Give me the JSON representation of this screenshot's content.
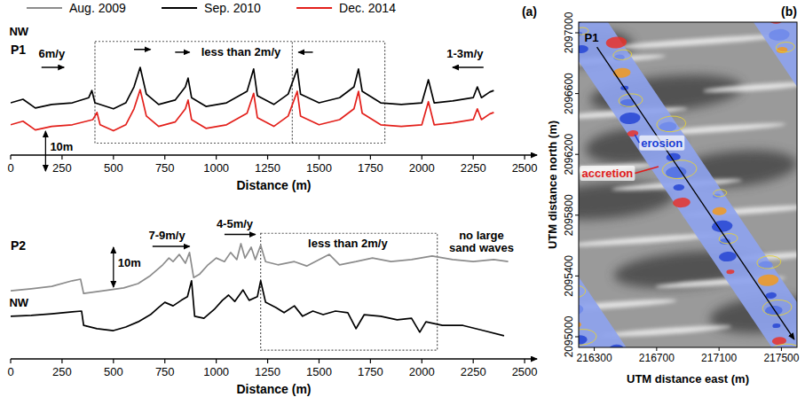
{
  "chart_data": [
    {
      "type": "line",
      "title": "P1",
      "panel_label": "(a)",
      "xlabel": "Distance (m)",
      "xlim": [
        0,
        2560
      ],
      "xticks": [
        0,
        250,
        500,
        750,
        1000,
        1250,
        1500,
        1750,
        2000,
        2250,
        2500
      ],
      "ylim": [
        0,
        32
      ],
      "tick_labels": "x",
      "legend": "top",
      "series": [
        {
          "name": "Sep. 2010",
          "color": "#000000",
          "x": [
            0,
            60,
            120,
            200,
            300,
            380,
            395,
            410,
            500,
            560,
            600,
            630,
            660,
            720,
            800,
            850,
            863,
            880,
            950,
            1050,
            1150,
            1182,
            1200,
            1280,
            1350,
            1394,
            1410,
            1500,
            1600,
            1670,
            1692,
            1710,
            1800,
            1900,
            2000,
            2032,
            2060,
            2150,
            2250,
            2270,
            2290,
            2330,
            2350
          ],
          "values": [
            13.1,
            14,
            11.8,
            12.7,
            13.1,
            14.4,
            16.2,
            13.1,
            11.6,
            13.1,
            17.1,
            22,
            15.3,
            12.7,
            13.8,
            17.1,
            19.3,
            14.4,
            12.2,
            13.1,
            16,
            21.6,
            14.9,
            12.7,
            15.3,
            21.6,
            15.3,
            13.1,
            14.4,
            17.1,
            21.6,
            16,
            13.1,
            12.7,
            13.1,
            18.9,
            13.1,
            13.6,
            14.4,
            17.1,
            14.4,
            15.8,
            16.2
          ]
        },
        {
          "name": "Dec. 2014",
          "color": "#e3201b",
          "x": [
            0,
            60,
            120,
            200,
            300,
            400,
            420,
            435,
            500,
            560,
            600,
            630,
            660,
            720,
            800,
            850,
            863,
            880,
            950,
            1050,
            1150,
            1182,
            1200,
            1280,
            1350,
            1394,
            1410,
            1500,
            1600,
            1670,
            1692,
            1710,
            1800,
            1900,
            2000,
            2032,
            2060,
            2150,
            2250,
            2270,
            2290,
            2330,
            2350
          ],
          "values": [
            7.6,
            8.5,
            6.3,
            7.2,
            7.6,
            8.9,
            10.7,
            7.6,
            6.1,
            7.6,
            11.6,
            16.4,
            9.8,
            7.2,
            8.3,
            11.6,
            13.8,
            8.9,
            6.7,
            7.6,
            10.5,
            15.5,
            9.4,
            7.2,
            9.8,
            16,
            9.8,
            7.6,
            8.9,
            11.6,
            16,
            10.5,
            7.6,
            7.2,
            7.6,
            13.4,
            7.6,
            8.1,
            8.9,
            11.6,
            8.9,
            10.3,
            10.7
          ]
        }
      ],
      "scale_bar": {
        "value": 10,
        "label": "10m",
        "x": 170,
        "y": -4
      },
      "regions": [
        {
          "x": [
            410,
            1820
          ],
          "y": [
            3,
            28.5
          ],
          "divider": 1370
        }
      ],
      "annotations": [
        {
          "text": "NW",
          "x": 40,
          "y": 30
        },
        {
          "text": "6m/y",
          "x": 200,
          "y": 24.5,
          "arrows": [
            [
              150,
              260,
              22
            ]
          ]
        },
        {
          "text": "less than 2m/y",
          "x": 1120,
          "y": 25,
          "arrows": [
            [
              600,
              680,
              26.5
            ],
            [
              800,
              870,
              25.8
            ],
            [
              1470,
              1400,
              25.8
            ]
          ]
        },
        {
          "text": "1-3m/y",
          "x": 2210,
          "y": 24.5,
          "arrows": [
            [
              2300,
              2150,
              22
            ]
          ]
        }
      ]
    },
    {
      "type": "line",
      "title": "P2",
      "xlabel": "Distance (m)",
      "xlim": [
        0,
        2560
      ],
      "xticks": [
        0,
        250,
        500,
        750,
        1000,
        1250,
        1500,
        1750,
        2000,
        2250,
        2500
      ],
      "ylim": [
        0,
        34
      ],
      "tick_labels": "x",
      "legend": "top",
      "series": [
        {
          "name": "Aug. 2009",
          "color": "#8c8c8c",
          "x": [
            0,
            100,
            200,
            300,
            340,
            355,
            450,
            550,
            620,
            680,
            740,
            770,
            790,
            820,
            850,
            870,
            890,
            920,
            960,
            1000,
            1040,
            1070,
            1100,
            1120,
            1140,
            1170,
            1190,
            1216,
            1240,
            1300,
            1380,
            1440,
            1500,
            1550,
            1600,
            1680,
            1760,
            1850,
            1950,
            2050,
            2150,
            2250,
            2350,
            2420
          ],
          "values": [
            17.1,
            17.6,
            18.2,
            19.6,
            20,
            16.4,
            17.1,
            17.8,
            18.9,
            20.9,
            23.6,
            25.3,
            24.4,
            26.2,
            24,
            26.7,
            20.4,
            21.3,
            23.6,
            25.3,
            24.4,
            26.7,
            24.9,
            28.9,
            25.3,
            28,
            24.9,
            28.5,
            24.4,
            23.6,
            24.4,
            23.3,
            24.9,
            26.2,
            23.6,
            24.4,
            25.3,
            24.4,
            24.9,
            25.8,
            24.9,
            24.4,
            24.9,
            24.4
          ]
        },
        {
          "name": "Sep. 2010",
          "color": "#000000",
          "x": [
            0,
            100,
            200,
            300,
            345,
            355,
            420,
            500,
            560,
            620,
            680,
            720,
            750,
            790,
            830,
            860,
            880,
            895,
            940,
            990,
            1030,
            1060,
            1090,
            1130,
            1160,
            1200,
            1216,
            1240,
            1290,
            1330,
            1380,
            1420,
            1470,
            1520,
            1580,
            1640,
            1680,
            1720,
            1800,
            1880,
            1950,
            1990,
            2020,
            2100,
            2200,
            2300,
            2400
          ],
          "values": [
            10.7,
            10.9,
            11.3,
            11.8,
            12,
            8.4,
            7.6,
            7.1,
            8,
            9.3,
            11.1,
            12.9,
            14.2,
            13.3,
            14.7,
            15.6,
            19.6,
            10.7,
            10.2,
            12.4,
            14.7,
            16,
            14.4,
            17.3,
            14.7,
            15.6,
            19.6,
            14.2,
            12.9,
            11.6,
            13.3,
            10.7,
            12,
            11.1,
            12,
            11.6,
            7.6,
            11.1,
            10.7,
            9.8,
            10.2,
            6.7,
            9.3,
            8.4,
            8.4,
            7.1,
            5.8
          ]
        }
      ],
      "scale_bar": {
        "value": 10,
        "label": "10m",
        "x": 500,
        "y": 18
      },
      "regions": [
        {
          "x": [
            1216,
            2075
          ],
          "y": [
            2.2,
            31.5
          ]
        }
      ],
      "annotations": [
        {
          "text": "NW",
          "x": 40,
          "y": 13.2
        },
        {
          "text": "7-9m/y",
          "x": 760,
          "y": 30,
          "arrows": [
            [
              690,
              870,
              28.2
            ]
          ]
        },
        {
          "text": "4-5m/y",
          "x": 1090,
          "y": 33,
          "arrows": [
            [
              1040,
              1190,
              31.2
            ]
          ]
        },
        {
          "text": "less than 2m/y",
          "x": 1640,
          "y": 28
        },
        {
          "text": "no large sand waves",
          "x": 2290,
          "y": 30
        }
      ]
    },
    {
      "type": "map",
      "panel_label": "(b)",
      "xlabel": "UTM distance east (m)",
      "ylabel": "UTM distance north (m)",
      "xlim": [
        216200,
        217600
      ],
      "xticks": [
        216300,
        216700,
        217100,
        217500
      ],
      "ylim": [
        2094930,
        2097070
      ],
      "yticks": [
        2095000,
        2095400,
        2095800,
        2096200,
        2096600,
        2097000
      ],
      "series": [
        {
          "name": "P1",
          "color": "#000000",
          "x": [
            216317,
            217582
          ],
          "values": [
            2096906,
            2094983
          ]
        }
      ],
      "annotations": [
        {
          "text": "erosion",
          "color": "#1a3fd6",
          "x": 216600,
          "y": 2096250,
          "target": [
            216560,
            2096330
          ]
        },
        {
          "text": "accretion",
          "color": "#e01b1b",
          "x": 216220,
          "y": 2096050,
          "target": [
            216712,
            2096120
          ]
        }
      ]
    }
  ]
}
